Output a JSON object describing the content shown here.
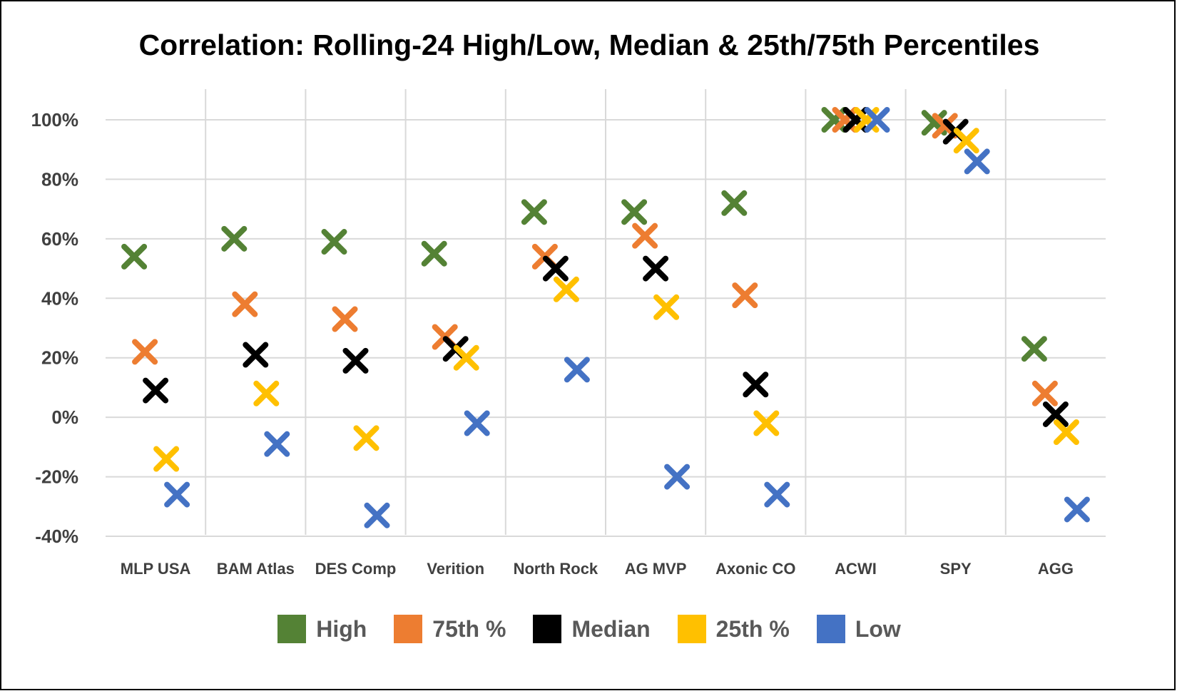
{
  "chart_data": {
    "type": "scatter",
    "title": "Correlation: Rolling-24 High/Low, Median & 25th/75th Percentiles",
    "categories": [
      "MLP USA",
      "BAM Atlas",
      "DES Comp",
      "Verition",
      "North Rock",
      "AG MVP",
      "Axonic CO",
      "ACWI",
      "SPY",
      "AGG"
    ],
    "y_tick_labels": [
      "100%",
      "80%",
      "60%",
      "40%",
      "20%",
      "0%",
      "-20%",
      "-40%"
    ],
    "ylim": [
      -40,
      100
    ],
    "y_unit": "%",
    "grid": true,
    "legend_position": "bottom",
    "marker": "x",
    "series": [
      {
        "name": "High",
        "color": "#548235",
        "values": [
          54,
          60,
          59,
          55,
          69,
          69,
          72,
          100,
          99,
          23
        ]
      },
      {
        "name": "75th %",
        "color": "#ED7D31",
        "values": [
          22,
          38,
          33,
          27,
          54,
          61,
          41,
          100,
          98,
          8
        ]
      },
      {
        "name": "Median",
        "color": "#000000",
        "values": [
          9,
          21,
          19,
          23,
          50,
          50,
          11,
          100,
          96,
          1
        ]
      },
      {
        "name": "25th %",
        "color": "#FFC000",
        "values": [
          -14,
          8,
          -7,
          20,
          43,
          37,
          -2,
          100,
          93,
          -5
        ]
      },
      {
        "name": "Low",
        "color": "#4472C4",
        "values": [
          -26,
          -9,
          -33,
          -2,
          16,
          -20,
          -26,
          100,
          86,
          -31
        ]
      }
    ]
  }
}
